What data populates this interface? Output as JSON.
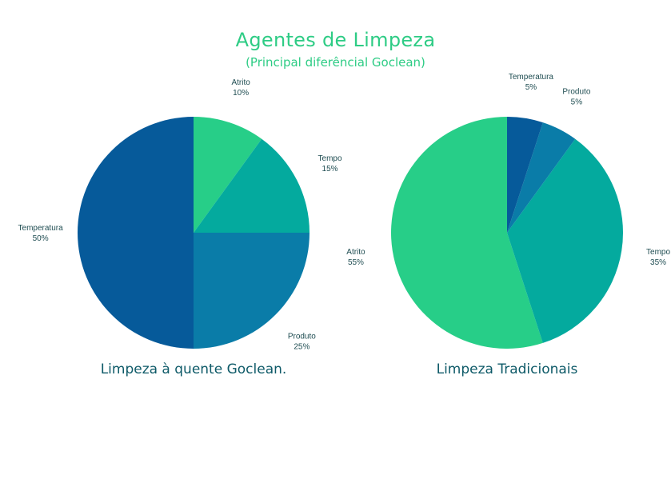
{
  "header": {
    "title": "Agentes de Limpeza",
    "subtitle": "(Principal diferêncial Goclean)"
  },
  "colors": {
    "title": "#2ecc85",
    "label": "#1f4d52",
    "chart_title": "#0e5a68",
    "Atrito": "#27ce88",
    "Tempo": "#04aa9e",
    "Produto": "#0a7ca8",
    "Temperatura": "#065a9a"
  },
  "chart_data": [
    {
      "type": "pie",
      "title": "Limpeza à quente Goclean.",
      "slices": [
        {
          "label": "Atrito",
          "value": 10,
          "display": "10%"
        },
        {
          "label": "Tempo",
          "value": 15,
          "display": "15%"
        },
        {
          "label": "Produto",
          "value": 25,
          "display": "25%"
        },
        {
          "label": "Temperatura",
          "value": 50,
          "display": "50%"
        }
      ]
    },
    {
      "type": "pie",
      "title": "Limpeza Tradicionais",
      "slices": [
        {
          "label": "Atrito",
          "value": 55,
          "display": "55%"
        },
        {
          "label": "Tempo",
          "value": 35,
          "display": "35%"
        },
        {
          "label": "Produto",
          "value": 5,
          "display": "5%"
        },
        {
          "label": "Temperatura",
          "value": 5,
          "display": "5%"
        }
      ]
    }
  ]
}
